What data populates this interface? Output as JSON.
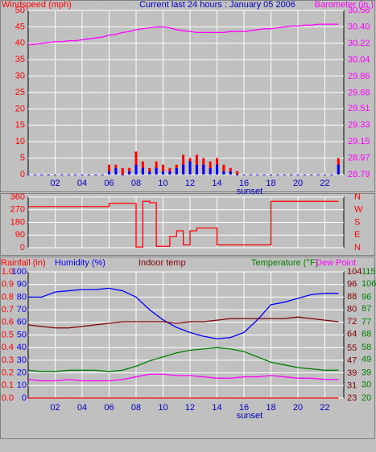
{
  "chart_data": [
    {
      "type": "line",
      "title": "Current last 24 hours : January 05 2006",
      "annotation": "sunset",
      "grid": true,
      "x": [
        0,
        0.5,
        1,
        1.5,
        2,
        2.5,
        3,
        3.5,
        4,
        4.5,
        5,
        5.5,
        6,
        6.5,
        7,
        7.5,
        8,
        8.5,
        9,
        9.5,
        10,
        10.5,
        11,
        11.5,
        12,
        12.5,
        13,
        13.5,
        14,
        14.5,
        15,
        15.5,
        16,
        16.5,
        17,
        17.5,
        18,
        18.5,
        19,
        19.5,
        20,
        20.5,
        21,
        21.5,
        22,
        22.5,
        23
      ],
      "xlim": [
        0,
        23.4
      ],
      "xticks": [
        {
          "value": 2,
          "label": "02"
        },
        {
          "value": 4,
          "label": "04"
        },
        {
          "value": 6,
          "label": "06"
        },
        {
          "value": 8,
          "label": "08"
        },
        10,
        12,
        14,
        16,
        18,
        20,
        22
      ],
      "axes": [
        {
          "color": "#ff0000",
          "lim": [
            0,
            50
          ],
          "ticks": [
            0,
            5,
            10,
            15,
            20,
            25,
            30,
            35,
            40,
            45,
            50
          ]
        },
        {
          "color": "#ff00ff",
          "lim": [
            28.79,
            30.58
          ],
          "ticks": [
            28.79,
            28.97,
            29.15,
            29.33,
            29.51,
            29.68,
            29.86,
            30.04,
            30.22,
            {
              "value": 30.4,
              "label": "30.40"
            },
            30.58
          ]
        }
      ],
      "series": [
        {
          "name": "Windspeed (mph)",
          "type": "bar",
          "axis": 0,
          "color": "#ff0000",
          "values": [
            0,
            0,
            0,
            0,
            0,
            0,
            0,
            0,
            0,
            0,
            0,
            0,
            3,
            3,
            2,
            2,
            7,
            4,
            2,
            4,
            3,
            2,
            3,
            6,
            5,
            6,
            5,
            4,
            5,
            3,
            2,
            1,
            0,
            0,
            0,
            0,
            0,
            0,
            0,
            0,
            0,
            0,
            0,
            0,
            0,
            0,
            5
          ]
        },
        {
          "type": "bar",
          "axis": 0,
          "color": "#0000ff",
          "values": [
            0,
            0,
            0,
            0,
            0,
            0,
            0,
            0,
            0,
            0,
            0,
            0,
            1,
            2,
            0,
            1,
            3,
            2,
            1,
            2,
            1,
            1,
            2,
            3,
            4,
            3,
            3,
            2,
            3,
            1,
            1,
            0,
            0,
            0,
            0,
            0,
            0,
            0,
            0,
            0,
            0,
            0,
            0,
            0,
            0,
            0,
            3
          ]
        },
        {
          "name": "Barometer (in.)",
          "type": "line",
          "axis": 1,
          "color": "#ff00ff",
          "values": [
            30.21,
            30.21,
            30.22,
            30.23,
            30.24,
            30.24,
            30.25,
            30.25,
            30.26,
            30.27,
            30.28,
            30.29,
            30.31,
            30.32,
            30.34,
            30.35,
            30.37,
            30.38,
            30.39,
            30.4,
            30.4,
            30.39,
            30.37,
            30.36,
            30.35,
            30.34,
            30.34,
            30.34,
            30.34,
            30.34,
            30.35,
            30.35,
            30.35,
            30.36,
            30.37,
            30.38,
            30.38,
            30.39,
            30.4,
            30.41,
            30.41,
            30.42,
            30.42,
            30.43,
            30.43,
            30.43,
            30.43
          ]
        }
      ]
    },
    {
      "type": "line",
      "step": true,
      "grid": true,
      "x": [
        0,
        0.5,
        1,
        1.5,
        2,
        2.5,
        3,
        3.5,
        4,
        4.5,
        5,
        5.5,
        6,
        6.5,
        7,
        7.5,
        8,
        8.5,
        9,
        9.5,
        10,
        10.5,
        11,
        11.5,
        12,
        12.5,
        13,
        13.5,
        14,
        14.5,
        15,
        15.5,
        16,
        16.5,
        17,
        17.5,
        18,
        18.5,
        19,
        19.5,
        20,
        20.5,
        21,
        21.5,
        22,
        22.5,
        23
      ],
      "xlim": [
        0,
        23.4
      ],
      "xticks": [
        2,
        4,
        6,
        8,
        10,
        12,
        14,
        16,
        18,
        20,
        22
      ],
      "ylim": [
        0,
        360
      ],
      "yticks": [
        0,
        90,
        180,
        270,
        360
      ],
      "y2lim": [
        0,
        360
      ],
      "y2ticks": [
        {
          "value": 0,
          "label": "N"
        },
        {
          "value": 90,
          "label": "E"
        },
        {
          "value": 180,
          "label": "S"
        },
        {
          "value": 270,
          "label": "W"
        },
        {
          "value": 360,
          "label": "N"
        }
      ],
      "series": [
        {
          "color": "#ff0000",
          "values": [
            292,
            292,
            292,
            292,
            292,
            292,
            292,
            292,
            292,
            292,
            292,
            292,
            315,
            315,
            315,
            315,
            5,
            330,
            320,
            10,
            10,
            80,
            120,
            20,
            120,
            140,
            140,
            140,
            20,
            20,
            20,
            20,
            20,
            20,
            20,
            20,
            330,
            330,
            330,
            330,
            330,
            330,
            330,
            330,
            330,
            330,
            330
          ]
        }
      ]
    },
    {
      "type": "line",
      "annotation": "sunset",
      "grid": true,
      "x": [
        0,
        1,
        2,
        3,
        4,
        5,
        6,
        7,
        8,
        9,
        10,
        11,
        12,
        13,
        14,
        15,
        16,
        17,
        18,
        19,
        20,
        21,
        22,
        23
      ],
      "xlim": [
        0,
        23.4
      ],
      "xticks": [
        {
          "value": 2,
          "label": "02"
        },
        {
          "value": 4,
          "label": "04"
        },
        {
          "value": 6,
          "label": "06"
        },
        {
          "value": 8,
          "label": "08"
        },
        10,
        12,
        14,
        16,
        18,
        20,
        22
      ],
      "axes": [
        {
          "color": "#ff0000",
          "lim": [
            0,
            1
          ],
          "ticks": [
            {
              "value": 0,
              "label": "0.0"
            },
            0.1,
            0.2,
            0.3,
            0.4,
            0.5,
            0.6,
            0.7,
            0.8,
            0.9,
            {
              "value": 1,
              "label": "1.0"
            }
          ]
        },
        {
          "color": "#0000ff",
          "lim": [
            0,
            100
          ],
          "ticks": [
            0,
            10,
            20,
            30,
            40,
            50,
            60,
            70,
            80,
            90,
            100
          ]
        },
        {
          "color": "#800000",
          "lim": [
            23,
            104
          ],
          "ticks": [
            23,
            31,
            39,
            47,
            55,
            64,
            72,
            80,
            88,
            96,
            104
          ]
        },
        {
          "color": "#008000",
          "lim": [
            20,
            115
          ],
          "ticks": [
            20,
            30,
            39,
            49,
            58,
            68,
            77,
            87,
            96,
            106,
            115
          ]
        }
      ],
      "series": [
        {
          "name": "Rainfall (in)",
          "axis": 0,
          "color": "#ff0000",
          "values": [
            0,
            0,
            0,
            0,
            0,
            0,
            0,
            0,
            0,
            0,
            0,
            0,
            0,
            0,
            0,
            0,
            0,
            0,
            0,
            0,
            0,
            0,
            0,
            0
          ]
        },
        {
          "name": "Humidity (%)",
          "axis": 1,
          "color": "#0000ff",
          "values": [
            80,
            80,
            84,
            85,
            86,
            86,
            87,
            85,
            80,
            70,
            62,
            56,
            52,
            49,
            47,
            48,
            52,
            62,
            74,
            76,
            79,
            82,
            83,
            83
          ]
        },
        {
          "name": "Indoor temp",
          "axis": 2,
          "color": "#800000",
          "values": [
            70,
            69,
            68,
            68,
            69,
            70,
            71,
            72,
            72,
            72,
            72,
            71,
            72,
            72,
            73,
            74,
            74,
            74,
            74,
            74,
            75,
            74,
            73,
            72
          ]
        },
        {
          "name": "Temperature (°F)",
          "axis": 3,
          "color": "#008000",
          "values": [
            41,
            40,
            40,
            41,
            41,
            41,
            40,
            41,
            44,
            48,
            51,
            54,
            56,
            57,
            58,
            57,
            55,
            51,
            47,
            45,
            43,
            42,
            41,
            41
          ]
        },
        {
          "name": "Dew Point",
          "axis": 3,
          "color": "#ff00ff",
          "values": [
            34,
            33,
            33,
            34,
            33,
            33,
            33,
            34,
            36,
            38,
            38,
            37,
            37,
            36,
            35,
            35,
            36,
            36,
            37,
            36,
            35,
            35,
            34,
            34
          ]
        }
      ]
    }
  ]
}
